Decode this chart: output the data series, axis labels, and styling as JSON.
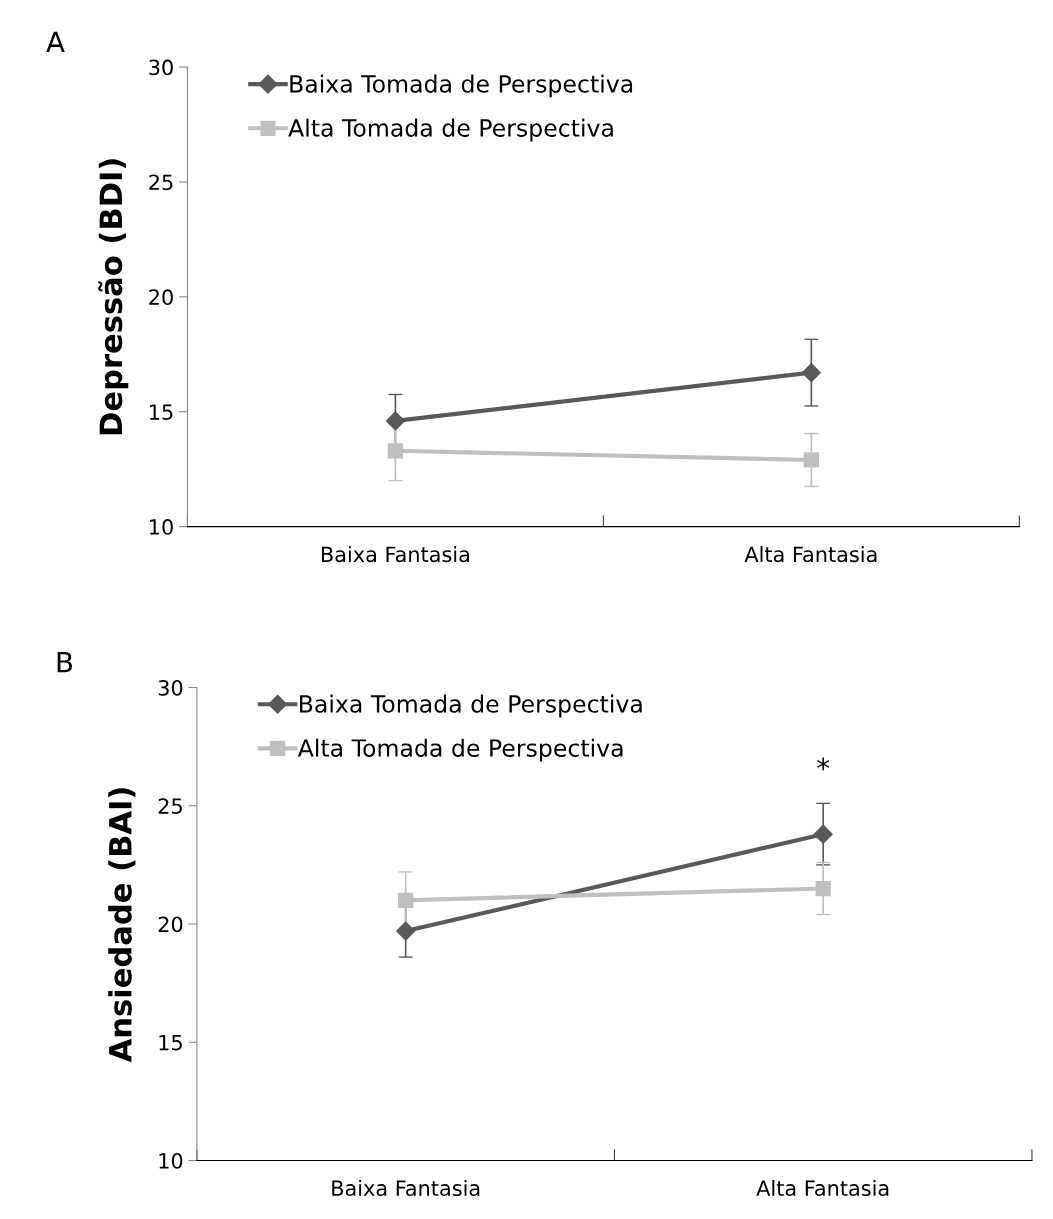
{
  "chart_data": [
    {
      "type": "line",
      "title": "A",
      "ylabel": "Depressão (BDI)",
      "categories": [
        "Baixa Fantasia",
        "Alta Fantasia"
      ],
      "ylim": [
        10,
        30
      ],
      "yticks": [
        10,
        15,
        20,
        25,
        30
      ],
      "legend": "top left",
      "grid": false,
      "series": [
        {
          "name": "Baixa Tomada de Perspectiva",
          "color": "#595959",
          "marker": "diamond",
          "values": [
            14.6,
            16.7
          ],
          "errors": [
            1.15,
            1.45
          ]
        },
        {
          "name": "Alta Tomada de Perspectiva",
          "color": "#bfbfbf",
          "marker": "square",
          "values": [
            13.3,
            12.9
          ],
          "errors": [
            1.3,
            1.15
          ]
        }
      ]
    },
    {
      "type": "line",
      "title": "B",
      "ylabel": "Ansiedade (BAI)",
      "categories": [
        "Baixa Fantasia",
        "Alta Fantasia"
      ],
      "ylim": [
        10,
        30
      ],
      "yticks": [
        10,
        15,
        20,
        25,
        30
      ],
      "legend": "top left",
      "grid": false,
      "annotations": [
        "*"
      ],
      "series": [
        {
          "name": "Baixa Tomada de Perspectiva",
          "color": "#595959",
          "marker": "diamond",
          "values": [
            19.7,
            23.8
          ],
          "errors": [
            1.1,
            1.3
          ]
        },
        {
          "name": "Alta Tomada de Perspectiva",
          "color": "#bfbfbf",
          "marker": "square",
          "values": [
            21.0,
            21.5
          ],
          "errors": [
            1.2,
            1.1
          ]
        }
      ]
    }
  ]
}
